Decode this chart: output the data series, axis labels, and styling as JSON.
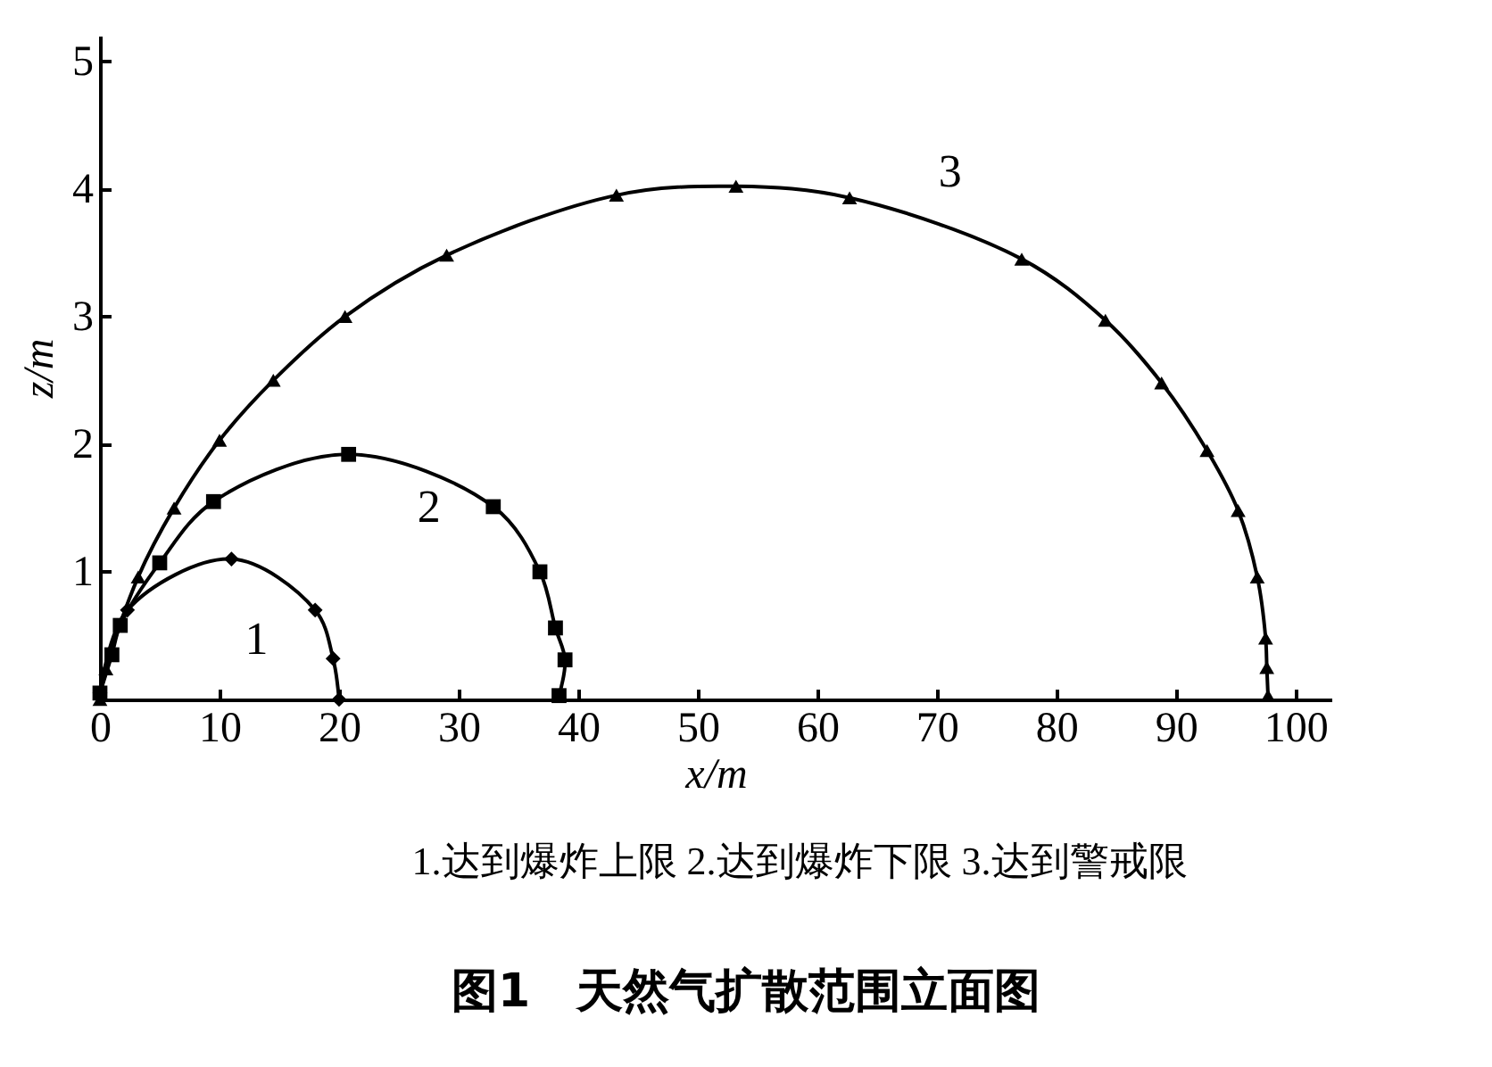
{
  "chart_data": {
    "type": "line",
    "title": "图1　天然气扩散范围立面图",
    "xlabel": "x/m",
    "ylabel": "z/m",
    "annotations": [
      "1.达到爆炸上限 2.达到爆炸下限 3.达到警戒限"
    ],
    "xlim": [
      0,
      103
    ],
    "xticks": [
      0,
      10,
      20,
      30,
      40,
      50,
      60,
      70,
      80,
      90,
      100
    ],
    "ylim": [
      0,
      5.2
    ],
    "yticks": [
      1,
      2,
      3,
      4,
      5
    ],
    "grid": false,
    "line_style": "solid",
    "series": [
      {
        "name": "1",
        "color": "#000000",
        "marker": "diamond",
        "x": [
          0,
          2.3,
          11,
          18,
          19.5,
          20
        ],
        "values": [
          0.05,
          0.7,
          1.1,
          0.7,
          0.32,
          0
        ]
      },
      {
        "name": "2",
        "color": "#000000",
        "marker": "square",
        "x": [
          0,
          1,
          1.7,
          5,
          9.5,
          20.8,
          32.9,
          36.8,
          38.1,
          38.9,
          38.4
        ],
        "values": [
          0.05,
          0.35,
          0.58,
          1.07,
          1.55,
          1.92,
          1.51,
          1,
          0.56,
          0.31,
          0.03
        ]
      },
      {
        "name": "3",
        "color": "#000000",
        "marker": "triangle",
        "x": [
          0,
          0.5,
          3.2,
          6.2,
          10,
          14.5,
          20.5,
          29,
          43.2,
          53.2,
          62.7,
          77.1,
          84.1,
          88.8,
          92.6,
          95.2,
          96.8,
          97.5,
          97.6,
          97.7
        ],
        "values": [
          0,
          0.24,
          0.96,
          1.5,
          2.03,
          2.5,
          3,
          3.48,
          3.95,
          4.02,
          3.93,
          3.45,
          2.97,
          2.48,
          1.95,
          1.48,
          0.96,
          0.48,
          0.25,
          0.03
        ]
      }
    ]
  }
}
